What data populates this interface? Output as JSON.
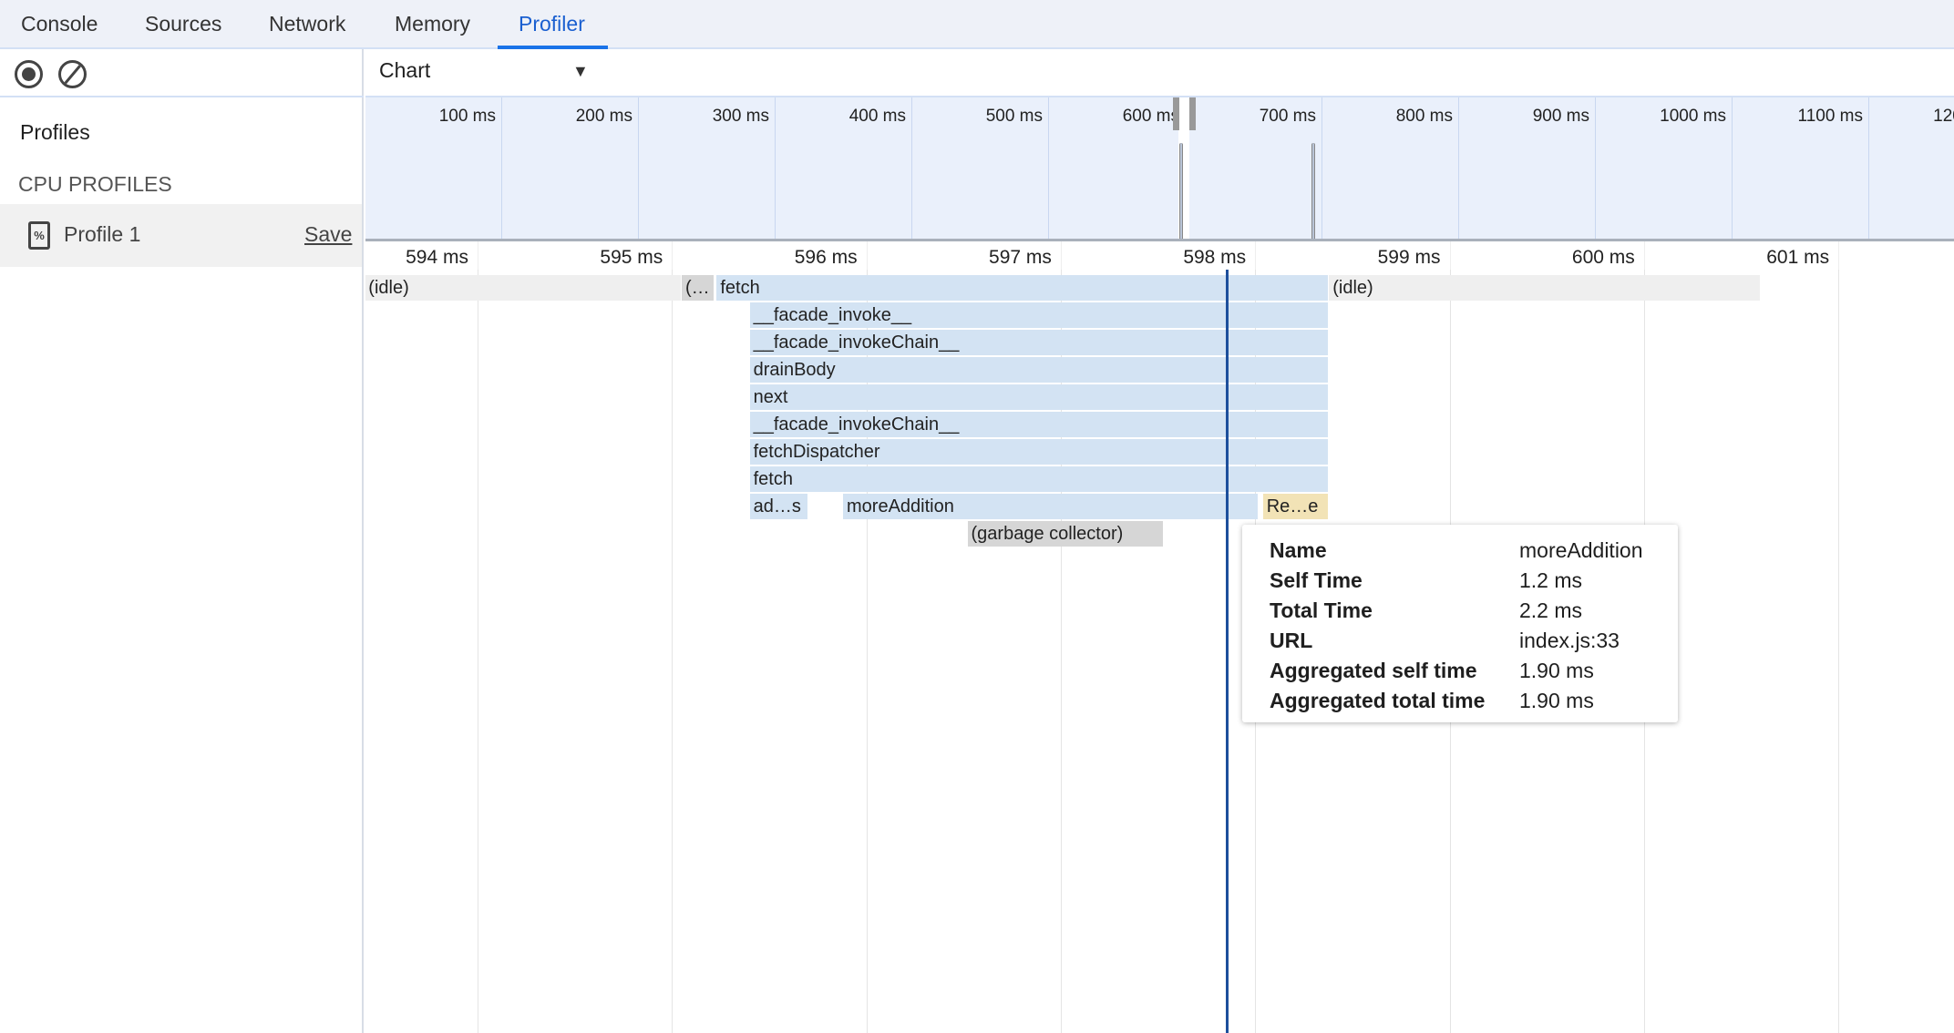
{
  "tabs": [
    {
      "label": "Console"
    },
    {
      "label": "Sources"
    },
    {
      "label": "Network"
    },
    {
      "label": "Memory"
    },
    {
      "label": "Profiler",
      "active": true
    }
  ],
  "sidebar": {
    "heading": "Profiles",
    "section": "CPU PROFILES",
    "profile": {
      "name": "Profile 1",
      "save_label": "Save"
    }
  },
  "toolbar": {
    "record_icon": "record-icon",
    "clear_icon": "clear-icon",
    "view_select": "Chart"
  },
  "overview": {
    "labels": [
      "100 ms",
      "200 ms",
      "300 ms",
      "400 ms",
      "500 ms",
      "600 ms",
      "700 ms",
      "800 ms",
      "900 ms",
      "1000 ms",
      "1100 ms",
      "1200 ms"
    ],
    "tick_ms": [
      100,
      200,
      300,
      400,
      500,
      600,
      700,
      800,
      900,
      1000,
      1100,
      1200
    ],
    "selection_ms": [
      595,
      603
    ],
    "spikes_ms": [
      597,
      694
    ]
  },
  "ruler": {
    "labels": [
      "594 ms",
      "595 ms",
      "596 ms",
      "597 ms",
      "598 ms",
      "599 ms",
      "600 ms",
      "601 ms"
    ],
    "tick_ms": [
      594,
      595,
      596,
      597,
      598,
      599,
      600,
      601
    ]
  },
  "colors": {
    "call": "#d3e3f3",
    "idle": "#efefef",
    "gc": "#d6d6d6",
    "native": "#f2e3b6",
    "cursor": "#1d4f9c"
  },
  "flame": [
    {
      "name": "(idle)",
      "depth": 0,
      "start": 593.42,
      "end": 595.05,
      "kind": "idle"
    },
    {
      "name": "(…",
      "depth": 0,
      "start": 595.05,
      "end": 595.22,
      "kind": "gc"
    },
    {
      "name": "fetch",
      "depth": 0,
      "start": 595.23,
      "end": 598.38,
      "kind": "call"
    },
    {
      "name": "(idle)",
      "depth": 0,
      "start": 598.38,
      "end": 600.6,
      "kind": "idle"
    },
    {
      "name": "__facade_invoke__",
      "depth": 1,
      "start": 595.4,
      "end": 598.38,
      "kind": "call"
    },
    {
      "name": "__facade_invokeChain__",
      "depth": 2,
      "start": 595.4,
      "end": 598.38,
      "kind": "call"
    },
    {
      "name": "drainBody",
      "depth": 3,
      "start": 595.4,
      "end": 598.38,
      "kind": "call"
    },
    {
      "name": "next",
      "depth": 4,
      "start": 595.4,
      "end": 598.38,
      "kind": "call"
    },
    {
      "name": "__facade_invokeChain__",
      "depth": 5,
      "start": 595.4,
      "end": 598.38,
      "kind": "call"
    },
    {
      "name": "fetchDispatcher",
      "depth": 6,
      "start": 595.4,
      "end": 598.38,
      "kind": "call"
    },
    {
      "name": "fetch",
      "depth": 7,
      "start": 595.4,
      "end": 598.38,
      "kind": "call"
    },
    {
      "name": "ad…s",
      "depth": 8,
      "start": 595.4,
      "end": 595.7,
      "kind": "call"
    },
    {
      "name": "moreAddition",
      "depth": 8,
      "start": 595.88,
      "end": 598.02,
      "kind": "call"
    },
    {
      "name": "Re…e",
      "depth": 8,
      "start": 598.04,
      "end": 598.38,
      "kind": "native"
    },
    {
      "name": "(garbage collector)",
      "depth": 9,
      "start": 596.52,
      "end": 597.53,
      "kind": "gc"
    }
  ],
  "cursor_ms": 597.85,
  "tooltip": [
    {
      "k": "Name",
      "v": "moreAddition"
    },
    {
      "k": "Self Time",
      "v": "1.2 ms"
    },
    {
      "k": "Total Time",
      "v": "2.2 ms"
    },
    {
      "k": "URL",
      "v": "index.js:33"
    },
    {
      "k": "Aggregated self time",
      "v": "1.90 ms"
    },
    {
      "k": "Aggregated total time",
      "v": "1.90 ms"
    }
  ]
}
